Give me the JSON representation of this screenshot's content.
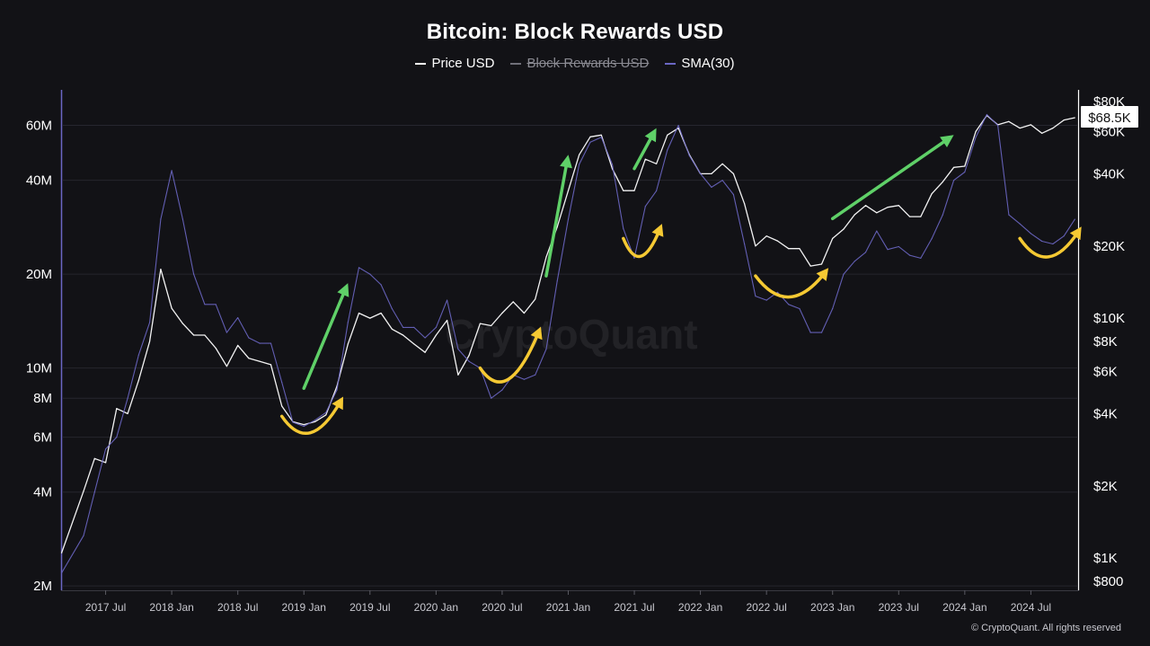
{
  "chart_data": {
    "type": "line",
    "title": "Bitcoin: Block Rewards USD",
    "legend": [
      {
        "label": "Price USD",
        "color": "#ffffff",
        "enabled": true
      },
      {
        "label": "Block Rewards USD",
        "color": "#8a8a92",
        "enabled": false
      },
      {
        "label": "SMA(30)",
        "color": "#6b67c4",
        "enabled": true
      }
    ],
    "watermark": "CryptoQuant",
    "copyright": "© CryptoQuant. All rights reserved",
    "x_ticks": [
      "2017 Jul",
      "2018 Jan",
      "2018 Jul",
      "2019 Jan",
      "2019 Jul",
      "2020 Jan",
      "2020 Jul",
      "2021 Jan",
      "2021 Jul",
      "2022 Jan",
      "2022 Jul",
      "2023 Jan",
      "2023 Jul",
      "2024 Jan",
      "2024 Jul"
    ],
    "x_range": [
      "2017-03",
      "2024-11"
    ],
    "y_left": {
      "scale": "log",
      "range": [
        1950000,
        78000000
      ],
      "label": "Block Rewards USD",
      "ticks": [
        {
          "v": 2000000,
          "label": "2M"
        },
        {
          "v": 4000000,
          "label": "4M"
        },
        {
          "v": 6000000,
          "label": "6M"
        },
        {
          "v": 8000000,
          "label": "8M"
        },
        {
          "v": 10000000,
          "label": "10M"
        },
        {
          "v": 20000000,
          "label": "20M"
        },
        {
          "v": 40000000,
          "label": "40M"
        },
        {
          "v": 60000000,
          "label": "60M"
        }
      ]
    },
    "y_right": {
      "scale": "log",
      "range": [
        800,
        80000
      ],
      "label": "Price USD",
      "ticks": [
        {
          "v": 800,
          "label": "$800"
        },
        {
          "v": 1000,
          "label": "$1K"
        },
        {
          "v": 2000,
          "label": "$2K"
        },
        {
          "v": 4000,
          "label": "$4K"
        },
        {
          "v": 6000,
          "label": "$6K"
        },
        {
          "v": 8000,
          "label": "$8K"
        },
        {
          "v": 10000,
          "label": "$10K"
        },
        {
          "v": 20000,
          "label": "$20K"
        },
        {
          "v": 40000,
          "label": "$40K"
        },
        {
          "v": 60000,
          "label": "$60K"
        },
        {
          "v": 80000,
          "label": "$80K"
        }
      ]
    },
    "last_price_label": "$68.5K",
    "grid": true,
    "series": [
      {
        "name": "Price USD",
        "axis": "right",
        "color": "#ffffff",
        "points": [
          [
            "2017-03",
            1050
          ],
          [
            "2017-05",
            1900
          ],
          [
            "2017-06",
            2600
          ],
          [
            "2017-07",
            2500
          ],
          [
            "2017-08",
            4200
          ],
          [
            "2017-09",
            4000
          ],
          [
            "2017-10",
            5500
          ],
          [
            "2017-11",
            8000
          ],
          [
            "2017-12",
            16000
          ],
          [
            "2018-01",
            11000
          ],
          [
            "2018-02",
            9500
          ],
          [
            "2018-03",
            8500
          ],
          [
            "2018-04",
            8500
          ],
          [
            "2018-05",
            7500
          ],
          [
            "2018-06",
            6300
          ],
          [
            "2018-07",
            7700
          ],
          [
            "2018-08",
            6800
          ],
          [
            "2018-09",
            6600
          ],
          [
            "2018-10",
            6400
          ],
          [
            "2018-11",
            4300
          ],
          [
            "2018-12",
            3700
          ],
          [
            "2019-01",
            3600
          ],
          [
            "2019-02",
            3700
          ],
          [
            "2019-03",
            3950
          ],
          [
            "2019-04",
            5200
          ],
          [
            "2019-05",
            7800
          ],
          [
            "2019-06",
            10500
          ],
          [
            "2019-07",
            10000
          ],
          [
            "2019-08",
            10500
          ],
          [
            "2019-09",
            9000
          ],
          [
            "2019-10",
            8500
          ],
          [
            "2019-11",
            7800
          ],
          [
            "2019-12",
            7200
          ],
          [
            "2020-01",
            8500
          ],
          [
            "2020-02",
            9800
          ],
          [
            "2020-03",
            5800
          ],
          [
            "2020-04",
            7000
          ],
          [
            "2020-05",
            9500
          ],
          [
            "2020-06",
            9300
          ],
          [
            "2020-07",
            10500
          ],
          [
            "2020-08",
            11700
          ],
          [
            "2020-09",
            10500
          ],
          [
            "2020-10",
            12000
          ],
          [
            "2020-11",
            18000
          ],
          [
            "2020-12",
            24000
          ],
          [
            "2021-01",
            34000
          ],
          [
            "2021-02",
            48000
          ],
          [
            "2021-03",
            57000
          ],
          [
            "2021-04",
            58000
          ],
          [
            "2021-05",
            42000
          ],
          [
            "2021-06",
            34000
          ],
          [
            "2021-07",
            34000
          ],
          [
            "2021-08",
            46000
          ],
          [
            "2021-09",
            44000
          ],
          [
            "2021-10",
            58000
          ],
          [
            "2021-11",
            62000
          ],
          [
            "2021-12",
            48000
          ],
          [
            "2022-01",
            40000
          ],
          [
            "2022-02",
            40000
          ],
          [
            "2022-03",
            44000
          ],
          [
            "2022-04",
            40000
          ],
          [
            "2022-05",
            30000
          ],
          [
            "2022-06",
            20000
          ],
          [
            "2022-07",
            22000
          ],
          [
            "2022-08",
            21000
          ],
          [
            "2022-09",
            19500
          ],
          [
            "2022-10",
            19500
          ],
          [
            "2022-11",
            16500
          ],
          [
            "2022-12",
            16800
          ],
          [
            "2023-01",
            21500
          ],
          [
            "2023-02",
            23500
          ],
          [
            "2023-03",
            27000
          ],
          [
            "2023-04",
            29500
          ],
          [
            "2023-05",
            27500
          ],
          [
            "2023-06",
            29000
          ],
          [
            "2023-07",
            29500
          ],
          [
            "2023-08",
            26500
          ],
          [
            "2023-09",
            26500
          ],
          [
            "2023-10",
            33000
          ],
          [
            "2023-11",
            37000
          ],
          [
            "2023-12",
            42500
          ],
          [
            "2024-01",
            43000
          ],
          [
            "2024-02",
            60000
          ],
          [
            "2024-03",
            70000
          ],
          [
            "2024-04",
            64000
          ],
          [
            "2024-05",
            66000
          ],
          [
            "2024-06",
            62000
          ],
          [
            "2024-07",
            64000
          ],
          [
            "2024-08",
            59000
          ],
          [
            "2024-09",
            62000
          ],
          [
            "2024-10",
            67000
          ],
          [
            "2024-11",
            68500
          ]
        ]
      },
      {
        "name": "SMA(30)",
        "axis": "left",
        "color": "#6b67c4",
        "points": [
          [
            "2017-03",
            2200000
          ],
          [
            "2017-05",
            2900000
          ],
          [
            "2017-06",
            4000000
          ],
          [
            "2017-07",
            5500000
          ],
          [
            "2017-08",
            6000000
          ],
          [
            "2017-09",
            8000000
          ],
          [
            "2017-10",
            11000000
          ],
          [
            "2017-11",
            14000000
          ],
          [
            "2017-12",
            30000000
          ],
          [
            "2018-01",
            43000000
          ],
          [
            "2018-02",
            30000000
          ],
          [
            "2018-03",
            20000000
          ],
          [
            "2018-04",
            16000000
          ],
          [
            "2018-05",
            16000000
          ],
          [
            "2018-06",
            13000000
          ],
          [
            "2018-07",
            14500000
          ],
          [
            "2018-08",
            12500000
          ],
          [
            "2018-09",
            12000000
          ],
          [
            "2018-10",
            12000000
          ],
          [
            "2018-11",
            9000000
          ],
          [
            "2018-12",
            6700000
          ],
          [
            "2019-01",
            6500000
          ],
          [
            "2019-02",
            6800000
          ],
          [
            "2019-03",
            7200000
          ],
          [
            "2019-04",
            8500000
          ],
          [
            "2019-05",
            14000000
          ],
          [
            "2019-06",
            21000000
          ],
          [
            "2019-07",
            20000000
          ],
          [
            "2019-08",
            18500000
          ],
          [
            "2019-09",
            15500000
          ],
          [
            "2019-10",
            13500000
          ],
          [
            "2019-11",
            13500000
          ],
          [
            "2019-12",
            12500000
          ],
          [
            "2020-01",
            13500000
          ],
          [
            "2020-02",
            16500000
          ],
          [
            "2020-03",
            11500000
          ],
          [
            "2020-04",
            10500000
          ],
          [
            "2020-05",
            10000000
          ],
          [
            "2020-06",
            8000000
          ],
          [
            "2020-07",
            8500000
          ],
          [
            "2020-08",
            9500000
          ],
          [
            "2020-09",
            9200000
          ],
          [
            "2020-10",
            9500000
          ],
          [
            "2020-11",
            11500000
          ],
          [
            "2020-12",
            19000000
          ],
          [
            "2021-01",
            30000000
          ],
          [
            "2021-02",
            45000000
          ],
          [
            "2021-03",
            53000000
          ],
          [
            "2021-04",
            55000000
          ],
          [
            "2021-05",
            45000000
          ],
          [
            "2021-06",
            28000000
          ],
          [
            "2021-07",
            22500000
          ],
          [
            "2021-08",
            33000000
          ],
          [
            "2021-09",
            37000000
          ],
          [
            "2021-10",
            50000000
          ],
          [
            "2021-11",
            60000000
          ],
          [
            "2021-12",
            48000000
          ],
          [
            "2022-01",
            42000000
          ],
          [
            "2022-02",
            38000000
          ],
          [
            "2022-03",
            40000000
          ],
          [
            "2022-04",
            36000000
          ],
          [
            "2022-05",
            25000000
          ],
          [
            "2022-06",
            17000000
          ],
          [
            "2022-07",
            16500000
          ],
          [
            "2022-08",
            17500000
          ],
          [
            "2022-09",
            16000000
          ],
          [
            "2022-10",
            15500000
          ],
          [
            "2022-11",
            13000000
          ],
          [
            "2022-12",
            13000000
          ],
          [
            "2023-01",
            15500000
          ],
          [
            "2023-02",
            20000000
          ],
          [
            "2023-03",
            22000000
          ],
          [
            "2023-04",
            23500000
          ],
          [
            "2023-05",
            27500000
          ],
          [
            "2023-06",
            24000000
          ],
          [
            "2023-07",
            24500000
          ],
          [
            "2023-08",
            23000000
          ],
          [
            "2023-09",
            22500000
          ],
          [
            "2023-10",
            26000000
          ],
          [
            "2023-11",
            31000000
          ],
          [
            "2023-12",
            40000000
          ],
          [
            "2024-01",
            42500000
          ],
          [
            "2024-02",
            55000000
          ],
          [
            "2024-03",
            65000000
          ],
          [
            "2024-04",
            60000000
          ],
          [
            "2024-05",
            31000000
          ],
          [
            "2024-06",
            29000000
          ],
          [
            "2024-07",
            27000000
          ],
          [
            "2024-08",
            25500000
          ],
          [
            "2024-09",
            25000000
          ],
          [
            "2024-10",
            26500000
          ],
          [
            "2024-11",
            30000000
          ]
        ]
      }
    ],
    "annotations": {
      "green_arrows": [
        {
          "from": [
            "2019-01",
            5100
          ],
          "to": [
            "2019-05",
            14000
          ]
        },
        {
          "from": [
            "2020-11",
            15000
          ],
          "to": [
            "2021-01",
            48000
          ]
        },
        {
          "from": [
            "2021-07",
            42000
          ],
          "to": [
            "2021-09",
            62000
          ]
        },
        {
          "from": [
            "2023-01",
            26000
          ],
          "to": [
            "2023-12",
            58000
          ]
        }
      ],
      "yellow_arcs": [
        {
          "from": [
            "2018-11",
            3900
          ],
          "to": [
            "2019-04",
            4200
          ]
        },
        {
          "from": [
            "2020-05",
            6200
          ],
          "to": [
            "2020-10",
            8200
          ]
        },
        {
          "from": [
            "2021-06",
            21500
          ],
          "to": [
            "2021-09",
            22000
          ]
        },
        {
          "from": [
            "2022-06",
            15000
          ],
          "to": [
            "2022-12",
            14500
          ]
        },
        {
          "from": [
            "2024-06",
            21500
          ],
          "to": [
            "2024-11",
            21500
          ]
        }
      ]
    }
  }
}
